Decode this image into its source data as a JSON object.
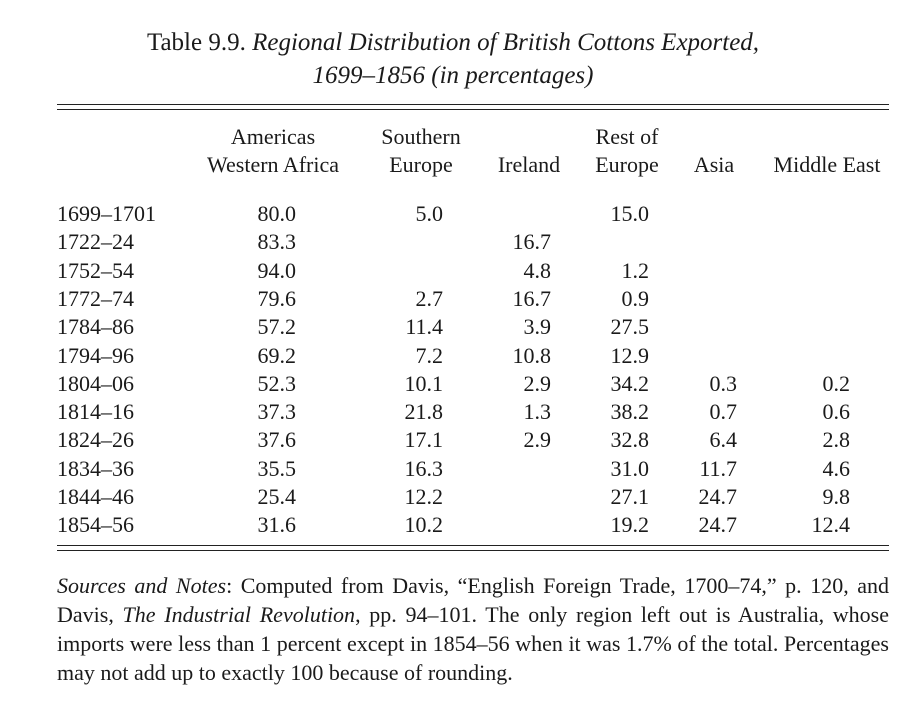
{
  "title": {
    "label": "Table 9.9.",
    "line1": "Regional Distribution of British Cottons Exported,",
    "line2": "1699–1856 (in percentages)"
  },
  "columns": [
    {
      "line1": "Americas",
      "line2": "Western Africa"
    },
    {
      "line1": "Southern",
      "line2": "Europe"
    },
    {
      "line1": "",
      "line2": "Ireland"
    },
    {
      "line1": "Rest of",
      "line2": "Europe"
    },
    {
      "line1": "",
      "line2": "Asia"
    },
    {
      "line1": "",
      "line2": "Middle East"
    }
  ],
  "rows": [
    {
      "period": "1699–1701",
      "values": [
        "80.0",
        "5.0",
        "",
        "15.0",
        "",
        ""
      ]
    },
    {
      "period": "1722–24",
      "values": [
        "83.3",
        "",
        "16.7",
        "",
        "",
        ""
      ]
    },
    {
      "period": "1752–54",
      "values": [
        "94.0",
        "",
        "4.8",
        "1.2",
        "",
        ""
      ]
    },
    {
      "period": "1772–74",
      "values": [
        "79.6",
        "2.7",
        "16.7",
        "0.9",
        "",
        ""
      ]
    },
    {
      "period": "1784–86",
      "values": [
        "57.2",
        "11.4",
        "3.9",
        "27.5",
        "",
        ""
      ]
    },
    {
      "period": "1794–96",
      "values": [
        "69.2",
        "7.2",
        "10.8",
        "12.9",
        "",
        ""
      ]
    },
    {
      "period": "1804–06",
      "values": [
        "52.3",
        "10.1",
        "2.9",
        "34.2",
        "0.3",
        "0.2"
      ]
    },
    {
      "period": "1814–16",
      "values": [
        "37.3",
        "21.8",
        "1.3",
        "38.2",
        "0.7",
        "0.6"
      ]
    },
    {
      "period": "1824–26",
      "values": [
        "37.6",
        "17.1",
        "2.9",
        "32.8",
        "6.4",
        "2.8"
      ]
    },
    {
      "period": "1834–36",
      "values": [
        "35.5",
        "16.3",
        "",
        "31.0",
        "11.7",
        "4.6"
      ]
    },
    {
      "period": "1844–46",
      "values": [
        "25.4",
        "12.2",
        "",
        "27.1",
        "24.7",
        "9.8"
      ]
    },
    {
      "period": "1854–56",
      "values": [
        "31.6",
        "10.2",
        "",
        "19.2",
        "24.7",
        "12.4"
      ]
    }
  ],
  "note": {
    "label": "Sources and Notes",
    "part1": ": Computed from Davis, “English Foreign Trade, 1700–74,” p. 120, and Davis, ",
    "book": "The Industrial Revolution",
    "part2": ", pp. 94–101. The only region left out is Australia, whose imports were less than 1 percent except in 1854–56 when it was 1.7% of the total. Percentages may not add up to exactly 100 because of rounding."
  }
}
